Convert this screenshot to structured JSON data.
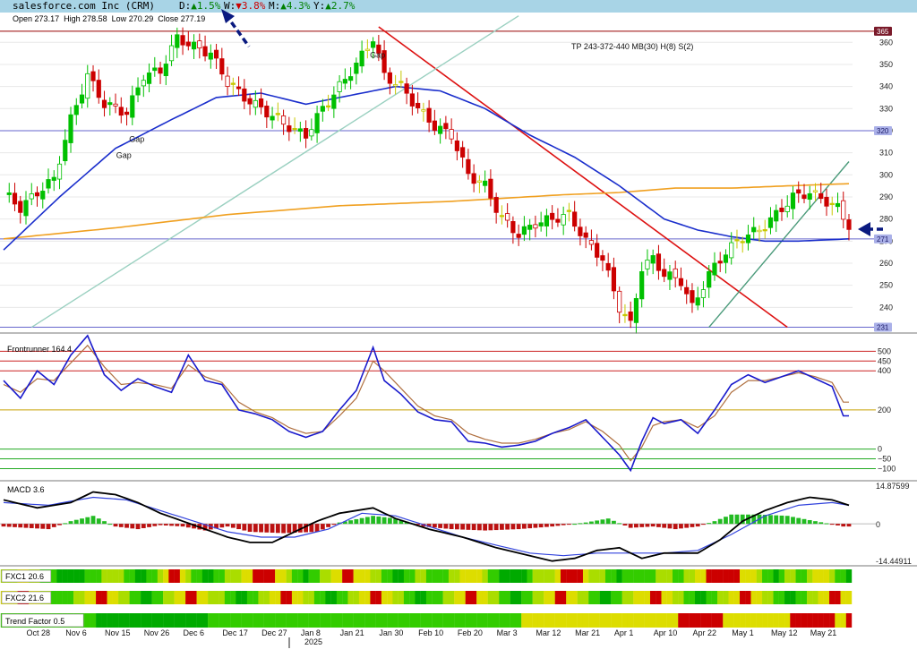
{
  "header": {
    "title": "salesforce.com Inc (CRM)",
    "changes": [
      {
        "label": "D:",
        "arrow": "▲",
        "value": "1.5%",
        "color": "#008000"
      },
      {
        "label": "W:",
        "arrow": "▼",
        "value": "3.8%",
        "color": "#cc0000"
      },
      {
        "label": "M:",
        "arrow": "▲",
        "value": "4.3%",
        "color": "#008000"
      },
      {
        "label": "Y:",
        "arrow": "▲",
        "value": "2.7%",
        "color": "#008000"
      }
    ],
    "ohlc": {
      "open": "273.17",
      "high": "278.58",
      "low": "270.29",
      "close": "277.19"
    },
    "ohlc_labels": {
      "open": "Open",
      "high": "High",
      "low": "Low",
      "close": "Close"
    }
  },
  "colors": {
    "up_candle": "#00c000",
    "down_candle": "#cc0000",
    "neutral_candle": "#c8c800",
    "ma_fast": "#1a2ecc",
    "ma_slow": "#f0a020",
    "trend_red": "#dd1111",
    "trend_green": "#4a9a7a",
    "level_line": "#6666cc",
    "resistance_line": "#990000",
    "header_bg": "#a8d4e6",
    "arrow": "#0a1a80"
  },
  "chart_data": [
    {
      "type": "candlestick",
      "title": "salesforce.com Inc (CRM)",
      "annotation": "TP 243-372-440 MB(30) H(8) S(2)",
      "gap_labels": [
        "Gap",
        "Gap",
        "Gap"
      ],
      "ylim": [
        230,
        367
      ],
      "yticks": [
        240,
        250,
        260,
        270,
        280,
        290,
        300,
        310,
        320,
        330,
        340,
        350,
        360
      ],
      "level_tags": [
        "365",
        "320",
        "271",
        "231"
      ],
      "levels": [
        365,
        320,
        271,
        231
      ],
      "x_labels": [
        "Oct 28",
        "Nov 6",
        "Nov 15",
        "Nov 26",
        "Dec 6",
        "Dec 17",
        "Dec 27",
        "Jan 8",
        "Jan 21",
        "Jan 30",
        "Feb 10",
        "Feb 20",
        "Mar 3",
        "Mar 12",
        "Mar 21",
        "Apr 1",
        "Apr 10",
        "Apr 22",
        "May 1",
        "May 12",
        "May 21"
      ],
      "year_label": "2025",
      "close_anchors": [
        [
          0,
          292
        ],
        [
          3,
          285
        ],
        [
          6,
          292
        ],
        [
          9,
          298
        ],
        [
          12,
          325
        ],
        [
          15,
          345
        ],
        [
          18,
          332
        ],
        [
          22,
          328
        ],
        [
          25,
          345
        ],
        [
          28,
          347
        ],
        [
          31,
          362
        ],
        [
          34,
          358
        ],
        [
          37,
          355
        ],
        [
          40,
          342
        ],
        [
          43,
          335
        ],
        [
          46,
          330
        ],
        [
          49,
          325
        ],
        [
          52,
          320
        ],
        [
          54,
          318
        ],
        [
          57,
          330
        ],
        [
          60,
          340
        ],
        [
          63,
          350
        ],
        [
          66,
          362
        ],
        [
          68,
          345
        ],
        [
          71,
          340
        ],
        [
          74,
          330
        ],
        [
          77,
          322
        ],
        [
          80,
          318
        ],
        [
          83,
          300
        ],
        [
          86,
          295
        ],
        [
          89,
          280
        ],
        [
          92,
          273
        ],
        [
          95,
          278
        ],
        [
          98,
          280
        ],
        [
          101,
          282
        ],
        [
          104,
          270
        ],
        [
          107,
          262
        ],
        [
          110,
          240
        ],
        [
          112,
          232
        ],
        [
          114,
          258
        ],
        [
          116,
          262
        ],
        [
          118,
          255
        ],
        [
          121,
          252
        ],
        [
          123,
          240
        ],
        [
          126,
          255
        ],
        [
          129,
          265
        ],
        [
          132,
          272
        ],
        [
          135,
          275
        ],
        [
          138,
          282
        ],
        [
          141,
          290
        ],
        [
          144,
          292
        ],
        [
          147,
          288
        ],
        [
          149,
          285
        ],
        [
          151,
          277
        ]
      ],
      "ma_fast": [
        [
          0,
          266
        ],
        [
          10,
          290
        ],
        [
          20,
          312
        ],
        [
          30,
          325
        ],
        [
          38,
          335
        ],
        [
          46,
          337
        ],
        [
          54,
          332
        ],
        [
          62,
          336
        ],
        [
          70,
          340
        ],
        [
          78,
          338
        ],
        [
          86,
          330
        ],
        [
          94,
          318
        ],
        [
          102,
          308
        ],
        [
          110,
          295
        ],
        [
          118,
          280
        ],
        [
          124,
          275
        ],
        [
          130,
          272
        ],
        [
          136,
          270
        ],
        [
          142,
          270
        ],
        [
          151,
          271
        ]
      ],
      "ma_slow": [
        [
          0,
          271
        ],
        [
          20,
          276
        ],
        [
          40,
          282
        ],
        [
          60,
          286
        ],
        [
          80,
          288
        ],
        [
          100,
          291
        ],
        [
          110,
          292
        ],
        [
          120,
          294
        ],
        [
          130,
          294
        ],
        [
          140,
          295
        ],
        [
          151,
          296
        ]
      ],
      "trendlines": [
        {
          "name": "red",
          "from": [
            67,
            367
          ],
          "to": [
            140,
            231
          ]
        },
        {
          "name": "green-long",
          "from": [
            5,
            231
          ],
          "to": [
            92,
            372
          ]
        },
        {
          "name": "green-short",
          "from": [
            126,
            231
          ],
          "to": [
            151,
            306
          ]
        }
      ]
    },
    {
      "type": "line",
      "title": "Frontrunner 164.4",
      "ylim": [
        -130,
        520
      ],
      "levels": [
        500,
        450,
        400,
        200,
        0,
        -50,
        -100
      ],
      "tick_labels": [
        "500",
        "450",
        "400",
        "200",
        "0",
        "−50",
        "−100"
      ],
      "fast": [
        [
          0,
          350
        ],
        [
          3,
          260
        ],
        [
          6,
          400
        ],
        [
          9,
          330
        ],
        [
          12,
          480
        ],
        [
          15,
          580
        ],
        [
          18,
          380
        ],
        [
          21,
          300
        ],
        [
          24,
          360
        ],
        [
          27,
          320
        ],
        [
          30,
          290
        ],
        [
          33,
          480
        ],
        [
          36,
          350
        ],
        [
          39,
          330
        ],
        [
          42,
          200
        ],
        [
          45,
          180
        ],
        [
          48,
          150
        ],
        [
          51,
          90
        ],
        [
          54,
          60
        ],
        [
          57,
          90
        ],
        [
          60,
          200
        ],
        [
          63,
          300
        ],
        [
          66,
          520
        ],
        [
          68,
          350
        ],
        [
          71,
          280
        ],
        [
          74,
          190
        ],
        [
          77,
          150
        ],
        [
          80,
          140
        ],
        [
          83,
          40
        ],
        [
          86,
          30
        ],
        [
          89,
          10
        ],
        [
          92,
          20
        ],
        [
          95,
          40
        ],
        [
          98,
          80
        ],
        [
          101,
          110
        ],
        [
          104,
          150
        ],
        [
          107,
          60
        ],
        [
          110,
          -30
        ],
        [
          112,
          -110
        ],
        [
          114,
          40
        ],
        [
          116,
          160
        ],
        [
          118,
          130
        ],
        [
          121,
          150
        ],
        [
          124,
          80
        ],
        [
          127,
          200
        ],
        [
          130,
          330
        ],
        [
          133,
          380
        ],
        [
          136,
          340
        ],
        [
          139,
          370
        ],
        [
          142,
          400
        ],
        [
          145,
          360
        ],
        [
          148,
          320
        ],
        [
          150,
          170
        ]
      ],
      "slow": [
        [
          0,
          330
        ],
        [
          3,
          290
        ],
        [
          6,
          360
        ],
        [
          9,
          350
        ],
        [
          12,
          440
        ],
        [
          15,
          530
        ],
        [
          18,
          420
        ],
        [
          21,
          330
        ],
        [
          24,
          340
        ],
        [
          27,
          330
        ],
        [
          30,
          310
        ],
        [
          33,
          430
        ],
        [
          36,
          370
        ],
        [
          39,
          340
        ],
        [
          42,
          240
        ],
        [
          45,
          190
        ],
        [
          48,
          160
        ],
        [
          51,
          110
        ],
        [
          54,
          80
        ],
        [
          57,
          90
        ],
        [
          60,
          170
        ],
        [
          63,
          260
        ],
        [
          66,
          450
        ],
        [
          68,
          400
        ],
        [
          71,
          310
        ],
        [
          74,
          220
        ],
        [
          77,
          170
        ],
        [
          80,
          150
        ],
        [
          83,
          80
        ],
        [
          86,
          50
        ],
        [
          89,
          30
        ],
        [
          92,
          30
        ],
        [
          95,
          50
        ],
        [
          98,
          80
        ],
        [
          101,
          100
        ],
        [
          104,
          140
        ],
        [
          107,
          90
        ],
        [
          110,
          20
        ],
        [
          112,
          -60
        ],
        [
          114,
          10
        ],
        [
          116,
          120
        ],
        [
          118,
          140
        ],
        [
          121,
          150
        ],
        [
          124,
          110
        ],
        [
          127,
          170
        ],
        [
          130,
          290
        ],
        [
          133,
          350
        ],
        [
          136,
          350
        ],
        [
          139,
          370
        ],
        [
          142,
          390
        ],
        [
          145,
          370
        ],
        [
          148,
          340
        ],
        [
          150,
          240
        ]
      ]
    },
    {
      "type": "bar",
      "title": "MACD 3.6",
      "ylim": [
        -14.44911,
        14.87599
      ],
      "tick_labels": [
        "14.87599",
        "0",
        "-14.44911"
      ],
      "histogram_anchors": [
        [
          0,
          -1
        ],
        [
          8,
          -2
        ],
        [
          12,
          1
        ],
        [
          16,
          3
        ],
        [
          20,
          -1
        ],
        [
          24,
          -2
        ],
        [
          28,
          -0.5
        ],
        [
          32,
          -1
        ],
        [
          36,
          -2.5
        ],
        [
          40,
          -1
        ],
        [
          44,
          -3
        ],
        [
          50,
          -3.5
        ],
        [
          56,
          -3
        ],
        [
          60,
          0.5
        ],
        [
          66,
          3
        ],
        [
          70,
          2
        ],
        [
          75,
          -1
        ],
        [
          80,
          -2
        ],
        [
          86,
          -2.5
        ],
        [
          92,
          -2
        ],
        [
          98,
          -1
        ],
        [
          104,
          0.5
        ],
        [
          108,
          2
        ],
        [
          112,
          -1.5
        ],
        [
          116,
          -1
        ],
        [
          120,
          -2
        ],
        [
          124,
          -1
        ],
        [
          127,
          1
        ],
        [
          130,
          3.5
        ],
        [
          135,
          3.5
        ],
        [
          140,
          3
        ],
        [
          145,
          1
        ],
        [
          150,
          -1
        ]
      ],
      "macd": [
        [
          0,
          9
        ],
        [
          6,
          6
        ],
        [
          12,
          8
        ],
        [
          16,
          12
        ],
        [
          20,
          11
        ],
        [
          24,
          8
        ],
        [
          28,
          4
        ],
        [
          32,
          1
        ],
        [
          36,
          -2
        ],
        [
          40,
          -5
        ],
        [
          44,
          -7
        ],
        [
          48,
          -7
        ],
        [
          52,
          -3
        ],
        [
          56,
          1
        ],
        [
          60,
          4
        ],
        [
          66,
          6
        ],
        [
          70,
          2
        ],
        [
          76,
          -2
        ],
        [
          82,
          -5
        ],
        [
          88,
          -9
        ],
        [
          94,
          -12
        ],
        [
          98,
          -14
        ],
        [
          102,
          -13
        ],
        [
          106,
          -10
        ],
        [
          110,
          -9
        ],
        [
          114,
          -13
        ],
        [
          118,
          -11
        ],
        [
          124,
          -11
        ],
        [
          128,
          -6
        ],
        [
          132,
          1
        ],
        [
          136,
          5
        ],
        [
          140,
          8
        ],
        [
          144,
          10
        ],
        [
          148,
          9
        ],
        [
          151,
          7
        ]
      ],
      "signal": [
        [
          0,
          8
        ],
        [
          8,
          7
        ],
        [
          16,
          10
        ],
        [
          22,
          9
        ],
        [
          28,
          5
        ],
        [
          34,
          1
        ],
        [
          40,
          -3
        ],
        [
          46,
          -5
        ],
        [
          52,
          -5
        ],
        [
          58,
          -2
        ],
        [
          64,
          4
        ],
        [
          70,
          3
        ],
        [
          76,
          -1
        ],
        [
          82,
          -5
        ],
        [
          88,
          -8
        ],
        [
          94,
          -11
        ],
        [
          100,
          -12
        ],
        [
          106,
          -11
        ],
        [
          112,
          -11
        ],
        [
          118,
          -11
        ],
        [
          124,
          -10
        ],
        [
          130,
          -4
        ],
        [
          136,
          3
        ],
        [
          142,
          7
        ],
        [
          148,
          8
        ],
        [
          151,
          7
        ]
      ]
    },
    {
      "type": "heatmap",
      "rows": [
        {
          "label": "FXC1 20.6",
          "pattern": "2233221110000011122221100112344321100122233444433211011223344333221100112211122333321100000122223444432221101111122211223344444433321101221123332110"
        },
        {
          "label": "FXC2 21.6",
          "pattern": "3344332211112233443322110011223344332211001122334433221100112233443322110011223344332211001122334433221100112233443322110011223344332211001122334433"
        },
        {
          "label": "Trend Factor 0.5",
          "pattern": "1111111111111111000000000000000000011111111111111111111111111111111111111111111111111111333333333333333333333333333444444443333333333344444444334"
        }
      ],
      "palette": [
        "#00aa00",
        "#33cc00",
        "#aadd00",
        "#dddd00",
        "#cc0000"
      ]
    }
  ]
}
